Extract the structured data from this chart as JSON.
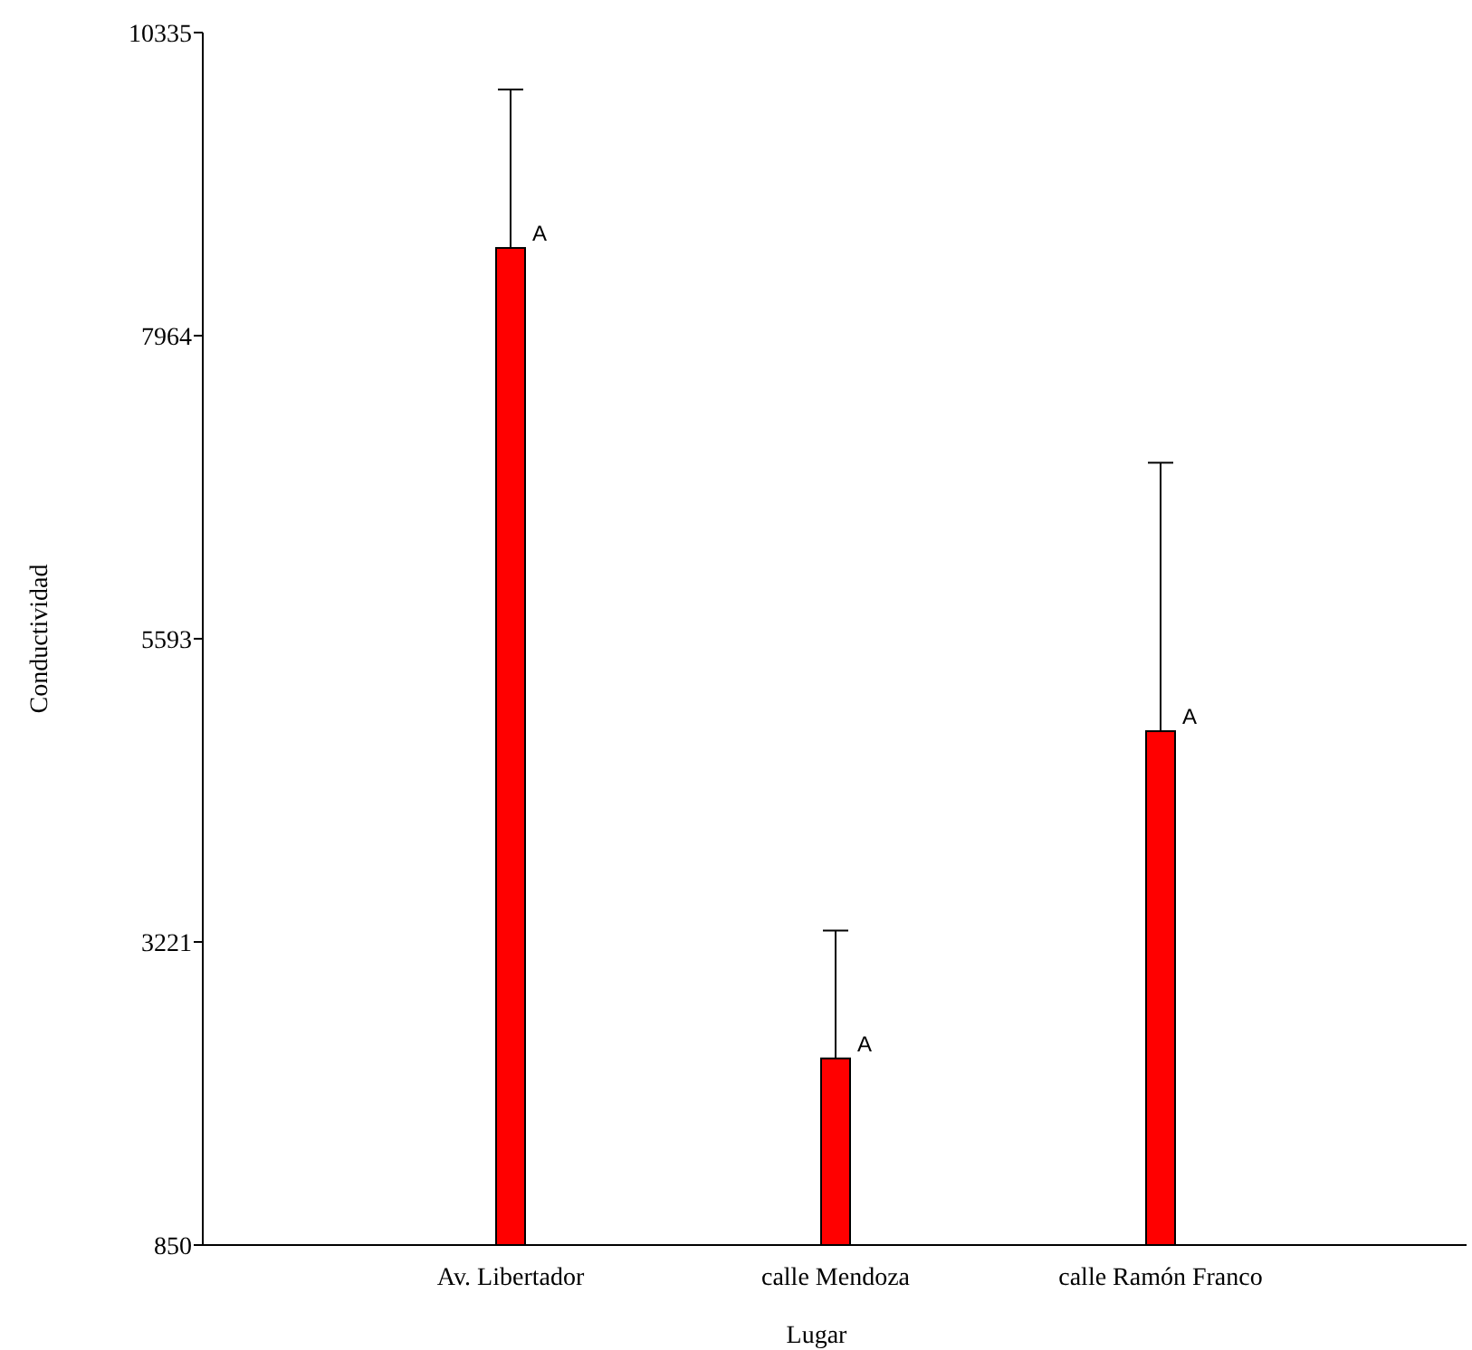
{
  "chart_data": {
    "type": "bar",
    "xlabel": "Lugar",
    "ylabel": "Conductividad",
    "categories": [
      "Av. Libertador",
      "calle Mendoza",
      "calle Ramón Franco"
    ],
    "values": [
      8650,
      2310,
      4870
    ],
    "color": "#ff0000",
    "errors": [
      [
        8650,
        9890
      ],
      [
        2310,
        3310
      ],
      [
        4870,
        6970
      ]
    ],
    "ylim": [
      850,
      10335
    ],
    "yticks": [
      850,
      3221,
      5593,
      7964,
      10335
    ],
    "annotations": [
      {
        "text": "A",
        "x": "Av. Libertador",
        "y": 8650
      },
      {
        "text": "A",
        "x": "calle Mendoza",
        "y": 2310
      },
      {
        "text": "A",
        "x": "calle Ramón Franco",
        "y": 4870
      }
    ]
  }
}
